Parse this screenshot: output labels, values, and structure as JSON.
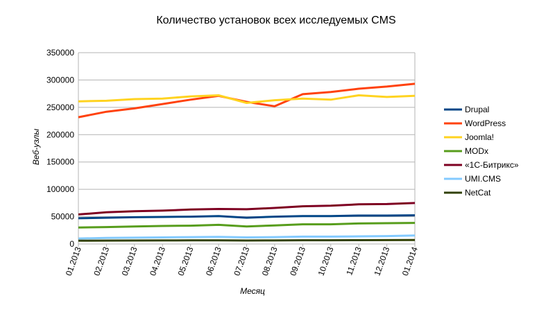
{
  "chart_data": {
    "type": "line",
    "title": "Количество установок всех исследуемых CMS",
    "xlabel": "Месяц",
    "ylabel": "Веб-узлы",
    "ylim": [
      0,
      350000
    ],
    "yticks": [
      0,
      50000,
      100000,
      150000,
      200000,
      250000,
      300000,
      350000
    ],
    "grid": "horizontal",
    "legend": "right",
    "categories": [
      "01.2013",
      "02.2013",
      "03.2013",
      "04.2013",
      "05.2013",
      "06.2013",
      "07.2013",
      "08.2013",
      "09.2013",
      "10.2013",
      "11.2013",
      "12.2013",
      "01.2014"
    ],
    "series": [
      {
        "name": "Drupal",
        "color": "#004586",
        "values": [
          47000,
          48000,
          49000,
          49500,
          50000,
          51000,
          48000,
          50000,
          51000,
          51000,
          52000,
          52000,
          52500
        ]
      },
      {
        "name": "WordPress",
        "color": "#ff420e",
        "values": [
          232000,
          242000,
          248000,
          256000,
          264000,
          271000,
          260000,
          252000,
          274000,
          278000,
          284000,
          288000,
          293000
        ]
      },
      {
        "name": "Joomla!",
        "color": "#ffd320",
        "values": [
          261000,
          262000,
          265000,
          266000,
          270000,
          272000,
          258000,
          263000,
          266000,
          264000,
          272000,
          269000,
          271000
        ]
      },
      {
        "name": "MODx",
        "color": "#579d1c",
        "values": [
          30000,
          31000,
          32000,
          33000,
          33500,
          35000,
          32000,
          34000,
          36000,
          36000,
          37500,
          38000,
          38500
        ]
      },
      {
        "name": "«1С-Битрикс»",
        "color": "#7e0021",
        "values": [
          54000,
          58000,
          60000,
          61000,
          63000,
          64000,
          63500,
          66000,
          69000,
          70000,
          72500,
          73000,
          75000
        ]
      },
      {
        "name": "UMI.CMS",
        "color": "#83caff",
        "values": [
          10000,
          11000,
          11500,
          12000,
          12500,
          13000,
          12000,
          12500,
          13500,
          13500,
          14000,
          14500,
          15500
        ]
      },
      {
        "name": "NetCat",
        "color": "#314004",
        "values": [
          6000,
          6200,
          6400,
          6500,
          6600,
          6700,
          6300,
          6500,
          6800,
          6800,
          7000,
          7100,
          7300
        ]
      }
    ]
  }
}
